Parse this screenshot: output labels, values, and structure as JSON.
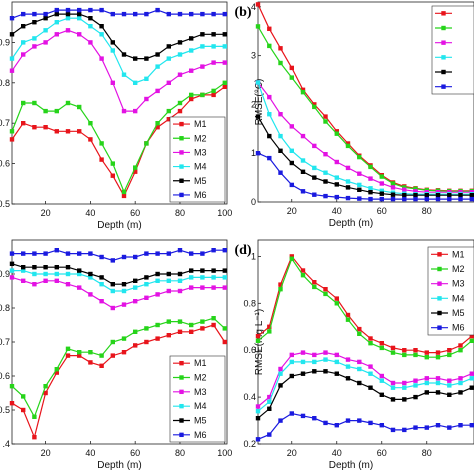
{
  "colors": {
    "M1": "#e8141b",
    "M2": "#26d41a",
    "M3": "#e312e3",
    "M4": "#22e6ee",
    "M5": "#000000",
    "M6": "#1a1adf"
  },
  "chart_data": [
    {
      "type": "line",
      "panel_label": "",
      "xlabel": "Depth (m)",
      "ylabel": "",
      "xlim": [
        5,
        101
      ],
      "ylim": [
        0.5,
        1.0
      ],
      "xticks": [
        20,
        40,
        60,
        80,
        100
      ],
      "yticks": [
        0.5,
        0.6,
        0.7,
        0.8,
        0.9
      ],
      "ytick_labels": [
        "0.5",
        "0.6",
        "0.7",
        "0.8",
        "0.9"
      ],
      "legend_position": "bottom-right",
      "x": [
        5,
        10,
        15,
        20,
        25,
        30,
        35,
        40,
        45,
        50,
        55,
        60,
        65,
        70,
        75,
        80,
        85,
        90,
        95,
        100
      ],
      "series": [
        {
          "name": "M1",
          "values": [
            0.66,
            0.7,
            0.69,
            0.69,
            0.68,
            0.68,
            0.68,
            0.66,
            0.61,
            0.57,
            0.52,
            0.58,
            0.65,
            0.69,
            0.71,
            0.73,
            0.76,
            0.77,
            0.77,
            0.79
          ]
        },
        {
          "name": "M2",
          "values": [
            0.68,
            0.75,
            0.75,
            0.73,
            0.73,
            0.75,
            0.74,
            0.7,
            0.65,
            0.6,
            0.53,
            0.59,
            0.65,
            0.7,
            0.73,
            0.75,
            0.77,
            0.77,
            0.78,
            0.8
          ]
        },
        {
          "name": "M3",
          "values": [
            0.83,
            0.87,
            0.89,
            0.9,
            0.92,
            0.93,
            0.92,
            0.9,
            0.86,
            0.8,
            0.73,
            0.73,
            0.76,
            0.78,
            0.8,
            0.82,
            0.83,
            0.84,
            0.85,
            0.85
          ]
        },
        {
          "name": "M4",
          "values": [
            0.86,
            0.9,
            0.91,
            0.93,
            0.95,
            0.96,
            0.96,
            0.94,
            0.92,
            0.88,
            0.82,
            0.8,
            0.81,
            0.84,
            0.86,
            0.87,
            0.88,
            0.89,
            0.89,
            0.89
          ]
        },
        {
          "name": "M5",
          "values": [
            0.92,
            0.94,
            0.95,
            0.96,
            0.97,
            0.97,
            0.97,
            0.96,
            0.94,
            0.9,
            0.87,
            0.86,
            0.86,
            0.87,
            0.89,
            0.9,
            0.91,
            0.92,
            0.92,
            0.92
          ]
        },
        {
          "name": "M6",
          "values": [
            0.96,
            0.97,
            0.97,
            0.97,
            0.98,
            0.98,
            0.98,
            0.98,
            0.98,
            0.97,
            0.97,
            0.97,
            0.97,
            0.98,
            0.97,
            0.97,
            0.97,
            0.97,
            0.97,
            0.97
          ]
        }
      ]
    },
    {
      "type": "line",
      "panel_label": "(b)",
      "xlabel": "Depth (m)",
      "ylabel": "RMSE(°C)",
      "xlim": [
        5,
        101
      ],
      "ylim": [
        0,
        4.1
      ],
      "xticks": [
        20,
        40,
        60,
        80
      ],
      "yticks": [
        0,
        1,
        2,
        3,
        4
      ],
      "ytick_labels": [
        "0",
        "1",
        "2",
        "3",
        "4"
      ],
      "legend_position": "top-right",
      "x": [
        5,
        10,
        15,
        20,
        25,
        30,
        35,
        40,
        45,
        50,
        55,
        60,
        65,
        70,
        75,
        80,
        85,
        90,
        95,
        100
      ],
      "series": [
        {
          "name": "",
          "values": [
            4.05,
            3.55,
            3.15,
            2.75,
            2.3,
            2.0,
            1.75,
            1.45,
            1.2,
            0.95,
            0.75,
            0.55,
            0.4,
            0.32,
            0.28,
            0.25,
            0.24,
            0.23,
            0.23,
            0.23
          ]
        },
        {
          "name": "",
          "values": [
            3.6,
            3.2,
            2.85,
            2.55,
            2.25,
            1.95,
            1.65,
            1.4,
            1.15,
            0.92,
            0.72,
            0.52,
            0.38,
            0.3,
            0.27,
            0.24,
            0.23,
            0.22,
            0.22,
            0.22
          ]
        },
        {
          "name": "",
          "values": [
            2.45,
            2.15,
            1.8,
            1.55,
            1.35,
            1.15,
            0.98,
            0.82,
            0.7,
            0.58,
            0.48,
            0.38,
            0.3,
            0.25,
            0.22,
            0.2,
            0.2,
            0.2,
            0.2,
            0.2
          ]
        },
        {
          "name": "",
          "values": [
            2.45,
            1.8,
            1.35,
            1.05,
            0.85,
            0.7,
            0.6,
            0.5,
            0.42,
            0.35,
            0.28,
            0.23,
            0.19,
            0.17,
            0.16,
            0.16,
            0.16,
            0.16,
            0.16,
            0.16
          ]
        },
        {
          "name": "",
          "values": [
            1.75,
            1.35,
            1.05,
            0.8,
            0.62,
            0.5,
            0.42,
            0.36,
            0.3,
            0.25,
            0.2,
            0.17,
            0.15,
            0.14,
            0.14,
            0.14,
            0.14,
            0.14,
            0.14,
            0.14
          ]
        },
        {
          "name": "",
          "values": [
            1.0,
            0.9,
            0.6,
            0.35,
            0.22,
            0.15,
            0.12,
            0.1,
            0.08,
            0.07,
            0.06,
            0.06,
            0.06,
            0.06,
            0.06,
            0.06,
            0.06,
            0.06,
            0.06,
            0.06
          ]
        }
      ]
    },
    {
      "type": "line",
      "panel_label": "",
      "xlabel": "Depth (m)",
      "ylabel": "",
      "xlim": [
        5,
        101
      ],
      "ylim": [
        0.4,
        1.0
      ],
      "xticks": [
        20,
        40,
        60,
        80,
        100
      ],
      "yticks": [
        0.4,
        0.5,
        0.6,
        0.7,
        0.8,
        0.9
      ],
      "ytick_labels": [
        ".4",
        "0.5",
        "0.6",
        "0.7",
        "0.8",
        "0.9"
      ],
      "legend_position": "bottom-right",
      "x": [
        5,
        10,
        15,
        20,
        25,
        30,
        35,
        40,
        45,
        50,
        55,
        60,
        65,
        70,
        75,
        80,
        85,
        90,
        95,
        100
      ],
      "series": [
        {
          "name": "M1",
          "values": [
            0.52,
            0.5,
            0.42,
            0.55,
            0.61,
            0.66,
            0.66,
            0.64,
            0.63,
            0.66,
            0.67,
            0.69,
            0.7,
            0.71,
            0.72,
            0.73,
            0.73,
            0.74,
            0.75,
            0.7
          ]
        },
        {
          "name": "M2",
          "values": [
            0.57,
            0.54,
            0.48,
            0.57,
            0.62,
            0.68,
            0.67,
            0.67,
            0.66,
            0.7,
            0.71,
            0.73,
            0.74,
            0.75,
            0.76,
            0.76,
            0.75,
            0.76,
            0.77,
            0.74
          ]
        },
        {
          "name": "M3",
          "values": [
            0.89,
            0.88,
            0.87,
            0.88,
            0.88,
            0.87,
            0.86,
            0.84,
            0.82,
            0.8,
            0.81,
            0.82,
            0.83,
            0.84,
            0.85,
            0.85,
            0.86,
            0.86,
            0.86,
            0.86
          ]
        },
        {
          "name": "M4",
          "values": [
            0.91,
            0.91,
            0.9,
            0.9,
            0.9,
            0.9,
            0.9,
            0.89,
            0.87,
            0.85,
            0.85,
            0.86,
            0.87,
            0.88,
            0.88,
            0.88,
            0.89,
            0.89,
            0.89,
            0.89
          ]
        },
        {
          "name": "M5",
          "values": [
            0.93,
            0.92,
            0.92,
            0.92,
            0.92,
            0.92,
            0.91,
            0.9,
            0.89,
            0.87,
            0.87,
            0.88,
            0.89,
            0.9,
            0.9,
            0.9,
            0.91,
            0.91,
            0.91,
            0.91
          ]
        },
        {
          "name": "M6",
          "values": [
            0.96,
            0.96,
            0.96,
            0.96,
            0.97,
            0.96,
            0.96,
            0.96,
            0.95,
            0.94,
            0.95,
            0.95,
            0.96,
            0.96,
            0.96,
            0.97,
            0.96,
            0.96,
            0.97,
            0.97
          ]
        }
      ]
    },
    {
      "type": "line",
      "panel_label": "(d)",
      "xlabel": "Depth (m)",
      "ylabel": "RMSE(mg L⁻¹)",
      "xlim": [
        5,
        101
      ],
      "ylim": [
        0.2,
        1.07
      ],
      "xticks": [
        20,
        40,
        60,
        80
      ],
      "yticks": [
        0.2,
        0.4,
        0.6,
        0.8,
        1.0
      ],
      "ytick_labels": [
        "0.2",
        "0.4",
        "0.6",
        "0.8",
        "1"
      ],
      "legend_position": "top-right",
      "x": [
        5,
        10,
        15,
        20,
        25,
        30,
        35,
        40,
        45,
        50,
        55,
        60,
        65,
        70,
        75,
        80,
        85,
        90,
        95,
        100
      ],
      "series": [
        {
          "name": "M1",
          "values": [
            0.66,
            0.7,
            0.88,
            1.0,
            0.94,
            0.89,
            0.86,
            0.82,
            0.75,
            0.69,
            0.65,
            0.63,
            0.61,
            0.6,
            0.6,
            0.59,
            0.59,
            0.6,
            0.62,
            0.66
          ]
        },
        {
          "name": "M2",
          "values": [
            0.64,
            0.68,
            0.86,
            0.99,
            0.92,
            0.87,
            0.84,
            0.8,
            0.73,
            0.67,
            0.63,
            0.61,
            0.59,
            0.58,
            0.58,
            0.57,
            0.57,
            0.58,
            0.6,
            0.64
          ]
        },
        {
          "name": "M3",
          "values": [
            0.36,
            0.4,
            0.52,
            0.58,
            0.59,
            0.58,
            0.59,
            0.58,
            0.56,
            0.55,
            0.53,
            0.49,
            0.46,
            0.46,
            0.47,
            0.48,
            0.48,
            0.47,
            0.48,
            0.5
          ]
        },
        {
          "name": "M4",
          "values": [
            0.34,
            0.38,
            0.5,
            0.55,
            0.55,
            0.55,
            0.56,
            0.55,
            0.53,
            0.52,
            0.5,
            0.47,
            0.44,
            0.44,
            0.45,
            0.46,
            0.46,
            0.45,
            0.46,
            0.48
          ]
        },
        {
          "name": "M5",
          "values": [
            0.31,
            0.35,
            0.45,
            0.49,
            0.5,
            0.51,
            0.51,
            0.5,
            0.48,
            0.46,
            0.44,
            0.41,
            0.39,
            0.39,
            0.4,
            0.42,
            0.42,
            0.41,
            0.42,
            0.44
          ]
        },
        {
          "name": "M6",
          "values": [
            0.22,
            0.24,
            0.3,
            0.33,
            0.32,
            0.31,
            0.29,
            0.28,
            0.3,
            0.3,
            0.29,
            0.28,
            0.26,
            0.26,
            0.27,
            0.27,
            0.28,
            0.27,
            0.28,
            0.28
          ]
        }
      ]
    }
  ]
}
